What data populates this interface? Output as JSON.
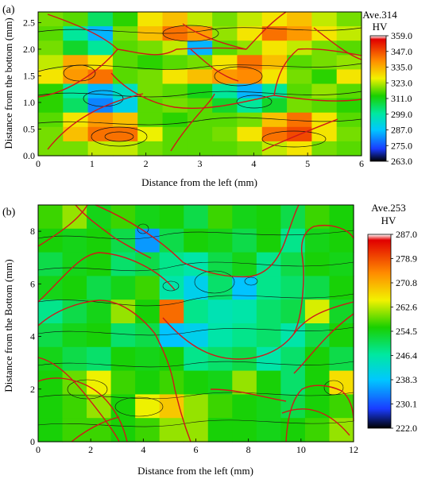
{
  "chart_data": [
    {
      "type": "heatmap",
      "panel_label": "(a)",
      "xlabel": "Distance from the left (mm)",
      "ylabel": "Distance from the bottom (mm)",
      "xlim": [
        0,
        6
      ],
      "ylim": [
        0,
        2.7
      ],
      "x_ticks": [
        "0",
        "1",
        "2",
        "3",
        "4",
        "5",
        "6"
      ],
      "y_ticks": [
        "0.0",
        "0.5",
        "1.0",
        "1.5",
        "2.0",
        "2.5"
      ],
      "colorbar": {
        "title_line1": "Ave.314",
        "title_line2": "HV",
        "labels": [
          "359.0",
          "347.0",
          "335.0",
          "323.0",
          "311.0",
          "299.0",
          "287.0",
          "275.0",
          "263.0"
        ],
        "min": 263.0,
        "max": 359.0
      },
      "grid_note": "Approximate microhardness map (HV) sampled on a regular grid",
      "x": [
        0,
        0.5,
        1,
        1.5,
        2,
        2.5,
        3,
        3.5,
        4,
        4.5,
        5,
        5.5,
        6
      ],
      "y": [
        2.7,
        2.4,
        2.1,
        1.8,
        1.5,
        1.2,
        0.9,
        0.6,
        0.3,
        0.0
      ],
      "z": [
        [
          320,
          318,
          305,
          315,
          330,
          335,
          325,
          320,
          325,
          330,
          335,
          325,
          320
        ],
        [
          318,
          300,
          285,
          320,
          335,
          345,
          340,
          322,
          330,
          345,
          340,
          330,
          325
        ],
        [
          320,
          310,
          300,
          318,
          320,
          325,
          285,
          318,
          322,
          330,
          325,
          320,
          318
        ],
        [
          325,
          338,
          330,
          318,
          315,
          318,
          320,
          330,
          345,
          335,
          318,
          320,
          322
        ],
        [
          330,
          340,
          345,
          318,
          320,
          330,
          335,
          340,
          342,
          330,
          320,
          315,
          330
        ],
        [
          315,
          300,
          285,
          295,
          320,
          318,
          312,
          300,
          285,
          300,
          318,
          322,
          318
        ],
        [
          315,
          305,
          280,
          290,
          318,
          320,
          318,
          310,
          300,
          310,
          320,
          318,
          315
        ],
        [
          318,
          330,
          340,
          335,
          318,
          315,
          318,
          318,
          320,
          335,
          345,
          330,
          318
        ],
        [
          320,
          335,
          345,
          345,
          328,
          318,
          318,
          320,
          330,
          345,
          350,
          330,
          320
        ],
        [
          320,
          320,
          325,
          325,
          320,
          318,
          318,
          318,
          320,
          325,
          330,
          320,
          318
        ]
      ]
    },
    {
      "type": "heatmap",
      "panel_label": "(b)",
      "xlabel": "Distance from the left (mm)",
      "ylabel": "Distance from the Bottom (mm)",
      "xlim": [
        0,
        12
      ],
      "ylim": [
        0,
        9
      ],
      "x_ticks": [
        "0",
        "2",
        "4",
        "6",
        "8",
        "10",
        "12"
      ],
      "y_ticks": [
        "0",
        "2",
        "4",
        "6",
        "8"
      ],
      "colorbar": {
        "title_line1": "Ave.253",
        "title_line2": "HV",
        "labels": [
          "287.0",
          "278.9",
          "270.8",
          "262.6",
          "254.5",
          "246.4",
          "238.3",
          "230.1",
          "222.0"
        ],
        "min": 222.0,
        "max": 287.0
      },
      "grid_note": "Approximate microhardness map (HV) sampled on a regular grid",
      "x": [
        0,
        1,
        2,
        3,
        4,
        5,
        6,
        7,
        8,
        9,
        10,
        11,
        12
      ],
      "y": [
        9,
        8,
        7,
        6,
        5,
        4,
        3,
        2,
        1,
        0
      ],
      "z": [
        [
          258,
          262,
          255,
          258,
          255,
          256,
          252,
          258,
          255,
          256,
          252,
          258,
          256
        ],
        [
          256,
          255,
          256,
          252,
          235,
          252,
          256,
          255,
          252,
          256,
          248,
          255,
          256
        ],
        [
          252,
          255,
          256,
          250,
          252,
          248,
          246,
          252,
          255,
          248,
          252,
          256,
          255
        ],
        [
          255,
          256,
          252,
          255,
          258,
          246,
          240,
          250,
          238,
          248,
          250,
          252,
          256
        ],
        [
          248,
          252,
          255,
          262,
          256,
          278,
          248,
          245,
          246,
          250,
          252,
          265,
          254
        ],
        [
          252,
          255,
          256,
          250,
          252,
          238,
          240,
          246,
          248,
          250,
          246,
          252,
          256
        ],
        [
          255,
          252,
          250,
          256,
          255,
          256,
          248,
          250,
          252,
          246,
          250,
          256,
          252
        ],
        [
          256,
          260,
          266,
          258,
          256,
          258,
          256,
          255,
          262,
          256,
          250,
          256,
          268
        ],
        [
          256,
          258,
          262,
          256,
          266,
          270,
          262,
          258,
          256,
          255,
          252,
          256,
          258
        ],
        [
          256,
          258,
          258,
          256,
          258,
          262,
          262,
          256,
          256,
          255,
          256,
          258,
          262
        ]
      ]
    }
  ]
}
